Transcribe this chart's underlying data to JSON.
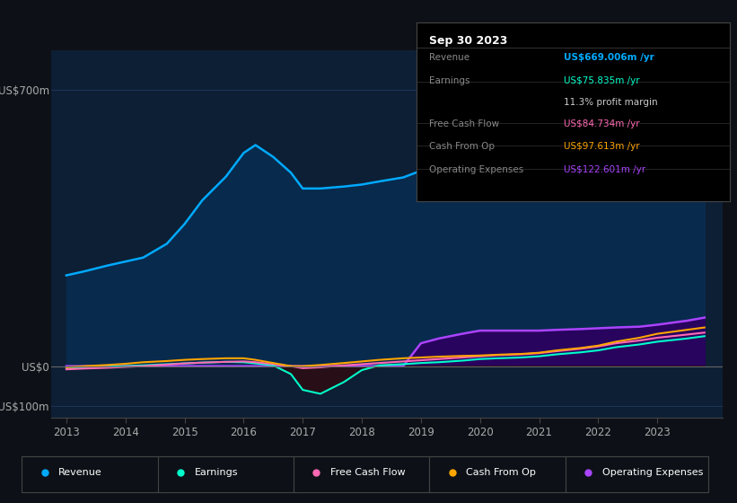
{
  "bg_color": "#0d1117",
  "plot_bg_color": "#0d1f35",
  "grid_color": "#1e3a5f",
  "title_text": "Sep 30 2023",
  "years": [
    2013.0,
    2013.3,
    2013.7,
    2014.0,
    2014.3,
    2014.7,
    2015.0,
    2015.3,
    2015.7,
    2016.0,
    2016.2,
    2016.5,
    2016.8,
    2017.0,
    2017.3,
    2017.7,
    2018.0,
    2018.3,
    2018.7,
    2019.0,
    2019.3,
    2019.7,
    2020.0,
    2020.3,
    2020.7,
    2021.0,
    2021.3,
    2021.7,
    2022.0,
    2022.3,
    2022.7,
    2023.0,
    2023.5,
    2023.8
  ],
  "revenue": [
    230,
    240,
    255,
    265,
    275,
    310,
    360,
    420,
    480,
    540,
    560,
    530,
    490,
    450,
    450,
    455,
    460,
    468,
    478,
    495,
    490,
    482,
    472,
    476,
    488,
    500,
    520,
    545,
    568,
    595,
    622,
    650,
    680,
    670
  ],
  "earnings": [
    -5,
    -4,
    -2,
    0,
    2,
    5,
    7,
    9,
    11,
    10,
    7,
    2,
    -20,
    -60,
    -70,
    -40,
    -10,
    2,
    5,
    8,
    10,
    14,
    18,
    20,
    22,
    25,
    30,
    35,
    40,
    48,
    55,
    62,
    70,
    76
  ],
  "free_cash_flow": [
    -8,
    -6,
    -4,
    -2,
    0,
    4,
    7,
    9,
    11,
    12,
    10,
    5,
    0,
    -5,
    -3,
    2,
    5,
    8,
    12,
    15,
    18,
    22,
    25,
    28,
    30,
    33,
    38,
    44,
    50,
    58,
    65,
    72,
    80,
    85
  ],
  "cash_from_op": [
    -3,
    0,
    3,
    6,
    10,
    13,
    16,
    18,
    20,
    20,
    16,
    8,
    0,
    0,
    3,
    8,
    12,
    16,
    20,
    22,
    24,
    26,
    27,
    29,
    31,
    34,
    40,
    46,
    52,
    62,
    72,
    82,
    92,
    98
  ],
  "operating_expenses": [
    0,
    0,
    0,
    0,
    0,
    0,
    0,
    0,
    0,
    0,
    0,
    0,
    0,
    0,
    0,
    0,
    0,
    0,
    0,
    58,
    70,
    82,
    90,
    90,
    90,
    90,
    92,
    94,
    96,
    98,
    100,
    105,
    115,
    123
  ],
  "ylim": [
    -130,
    800
  ],
  "yticks_pos": [
    -100,
    0,
    700
  ],
  "ytick_labels": [
    "-US$100m",
    "US$0",
    "US$700m"
  ],
  "xticks": [
    2013,
    2014,
    2015,
    2016,
    2017,
    2018,
    2019,
    2020,
    2021,
    2022,
    2023
  ],
  "legend_items": [
    {
      "label": "Revenue",
      "color": "#00aaff"
    },
    {
      "label": "Earnings",
      "color": "#00ffcc"
    },
    {
      "label": "Free Cash Flow",
      "color": "#ff69b4"
    },
    {
      "label": "Cash From Op",
      "color": "#ffa500"
    },
    {
      "label": "Operating Expenses",
      "color": "#aa44ff"
    }
  ],
  "info_rows": [
    {
      "label": "Revenue",
      "value": "US$669.006m /yr",
      "val_color": "#00aaff",
      "label_color": "#888888"
    },
    {
      "label": "Earnings",
      "value": "US$75.835m /yr",
      "val_color": "#00ffcc",
      "label_color": "#888888"
    },
    {
      "label": "",
      "value": "11.3% profit margin",
      "val_color": "#cccccc",
      "label_color": "#888888"
    },
    {
      "label": "Free Cash Flow",
      "value": "US$84.734m /yr",
      "val_color": "#ff69b4",
      "label_color": "#888888"
    },
    {
      "label": "Cash From Op",
      "value": "US$97.613m /yr",
      "val_color": "#ffa500",
      "label_color": "#888888"
    },
    {
      "label": "Operating Expenses",
      "value": "US$122.601m /yr",
      "val_color": "#aa44ff",
      "label_color": "#888888"
    }
  ]
}
